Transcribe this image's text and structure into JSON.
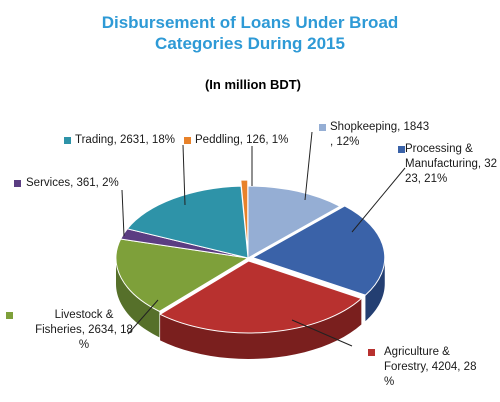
{
  "chart_data": {
    "type": "pie",
    "title_lines": [
      "Disbursement of Loans Under Broad",
      "Categories During 2015"
    ],
    "subtitle": "(In million BDT)",
    "slices": [
      {
        "id": "shopkeeping",
        "name": "Shopkeeping",
        "value": 1843,
        "percent": 12,
        "color": "#95aed4",
        "side": "#6f88b0",
        "label_lines": [
          "Shopkeeping, 1843",
          ", 12%"
        ]
      },
      {
        "id": "processing",
        "name": "Processing & Manufacturing",
        "value": 3223,
        "percent": 21,
        "color": "#3a62a8",
        "side": "#243f72",
        "label_lines": [
          "Processing &",
          "Manufacturing, 32",
          "23, 21%"
        ]
      },
      {
        "id": "agriculture",
        "name": "Agriculture & Forestry",
        "value": 4204,
        "percent": 28,
        "color": "#b8312f",
        "side": "#7a1f1e",
        "label_lines": [
          "Agriculture &",
          "Forestry, 4204, 28",
          "%"
        ]
      },
      {
        "id": "livestock",
        "name": "Livestock & Fisheries",
        "value": 2634,
        "percent": 18,
        "color": "#7ea03a",
        "side": "#56702a",
        "label_lines": [
          "Livestock &",
          "Fisheries, 2634, 18",
          "%"
        ]
      },
      {
        "id": "services",
        "name": "Services",
        "value": 361,
        "percent": 2,
        "color": "#5b3d82",
        "side": "#3c2857",
        "label_lines": [
          "Services, 361, 2%"
        ]
      },
      {
        "id": "trading",
        "name": "Trading",
        "value": 2631,
        "percent": 18,
        "color": "#2e93a8",
        "side": "#1d6677",
        "label_lines": [
          "Trading, 2631, 18%"
        ]
      },
      {
        "id": "peddling",
        "name": "Peddling",
        "value": 126,
        "percent": 1,
        "color": "#e8822a",
        "side": "#a85a18",
        "label_lines": [
          "Peddling, 126, 1%"
        ]
      }
    ],
    "legend": "labels-with-leader-lines"
  }
}
